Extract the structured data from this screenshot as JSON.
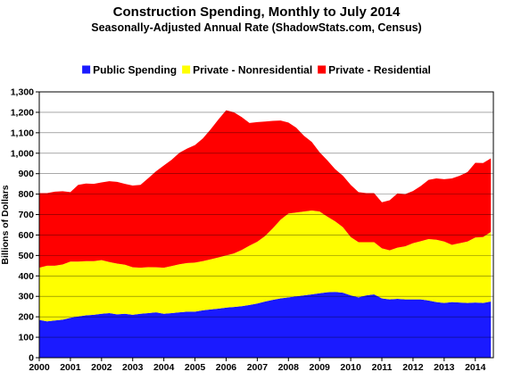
{
  "chart_data": {
    "type": "area",
    "stacked": true,
    "title": "Construction Spending, Monthly to July 2014",
    "subtitle": "Seasonally-Adjusted Annual Rate (ShadowStats.com, Census)",
    "xlabel": "",
    "ylabel": "Billions of Dollars",
    "ylim": [
      0,
      1300
    ],
    "yticks": [
      0,
      100,
      200,
      300,
      400,
      500,
      600,
      700,
      800,
      900,
      1000,
      1100,
      1200,
      1300
    ],
    "ytick_labels": [
      "0",
      "100",
      "200",
      "300",
      "400",
      "500",
      "600",
      "700",
      "800",
      "900",
      "1,000",
      "1,100",
      "1,200",
      "1,300"
    ],
    "xlim": [
      2000,
      2014.58
    ],
    "xtick_labels": [
      "2000",
      "2001",
      "2002",
      "2003",
      "2004",
      "2005",
      "2006",
      "2007",
      "2008",
      "2009",
      "2010",
      "2011",
      "2012",
      "2013",
      "2014"
    ],
    "grid": true,
    "legend_position": "top",
    "colors": {
      "public": "#1a1aff",
      "nonres": "#ffff00",
      "residential": "#ff0000"
    },
    "x": [
      2000.0,
      2000.25,
      2000.5,
      2000.75,
      2001.0,
      2001.25,
      2001.5,
      2001.75,
      2002.0,
      2002.25,
      2002.5,
      2002.75,
      2003.0,
      2003.25,
      2003.5,
      2003.75,
      2004.0,
      2004.25,
      2004.5,
      2004.75,
      2005.0,
      2005.25,
      2005.5,
      2005.75,
      2006.0,
      2006.25,
      2006.5,
      2006.75,
      2007.0,
      2007.25,
      2007.5,
      2007.75,
      2008.0,
      2008.25,
      2008.5,
      2008.75,
      2009.0,
      2009.25,
      2009.5,
      2009.75,
      2010.0,
      2010.25,
      2010.5,
      2010.75,
      2011.0,
      2011.25,
      2011.5,
      2011.75,
      2012.0,
      2012.25,
      2012.5,
      2012.75,
      2013.0,
      2013.25,
      2013.5,
      2013.75,
      2014.0,
      2014.25,
      2014.5
    ],
    "series": [
      {
        "name": "Public Spending",
        "key": "public",
        "values": [
          185,
          178,
          182,
          186,
          195,
          202,
          207,
          210,
          215,
          218,
          212,
          215,
          210,
          215,
          218,
          222,
          215,
          218,
          222,
          225,
          225,
          232,
          236,
          240,
          245,
          248,
          252,
          258,
          265,
          275,
          283,
          290,
          295,
          300,
          305,
          310,
          315,
          320,
          322,
          318,
          305,
          295,
          305,
          310,
          290,
          285,
          288,
          285,
          285,
          285,
          280,
          272,
          268,
          272,
          270,
          268,
          270,
          268,
          275
        ]
      },
      {
        "name": "Private - Nonresidential",
        "key": "nonres",
        "values": [
          255,
          272,
          268,
          270,
          275,
          268,
          265,
          262,
          262,
          250,
          248,
          240,
          232,
          225,
          225,
          220,
          225,
          230,
          235,
          238,
          240,
          240,
          245,
          250,
          255,
          262,
          275,
          290,
          302,
          320,
          350,
          385,
          410,
          410,
          410,
          410,
          400,
          370,
          345,
          320,
          285,
          270,
          260,
          255,
          245,
          240,
          250,
          260,
          275,
          285,
          300,
          305,
          300,
          280,
          290,
          300,
          318,
          322,
          340
        ]
      },
      {
        "name": "Private - Residential",
        "key": "residential",
        "values": [
          365,
          355,
          362,
          358,
          340,
          375,
          380,
          378,
          380,
          395,
          400,
          395,
          400,
          405,
          435,
          470,
          500,
          520,
          545,
          560,
          575,
          600,
          635,
          675,
          710,
          690,
          650,
          600,
          585,
          560,
          525,
          485,
          445,
          415,
          370,
          335,
          290,
          275,
          255,
          252,
          255,
          245,
          240,
          240,
          225,
          245,
          265,
          255,
          255,
          270,
          290,
          300,
          305,
          325,
          330,
          340,
          365,
          362,
          360
        ]
      }
    ]
  }
}
